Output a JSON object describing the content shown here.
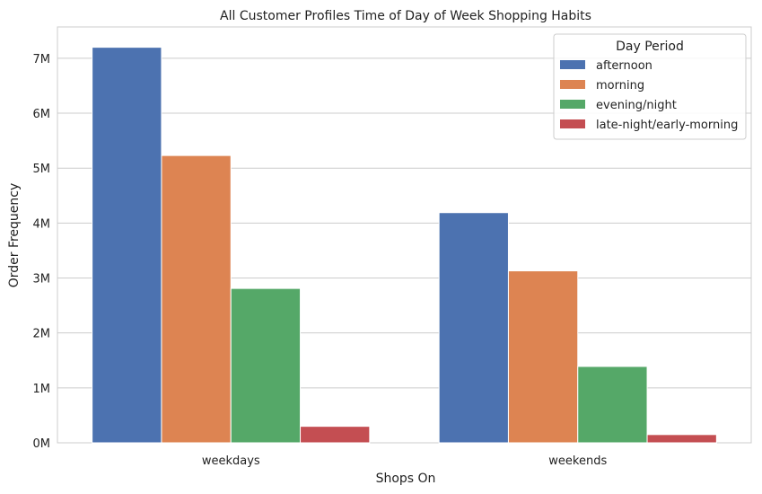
{
  "chart_data": {
    "type": "bar",
    "title": "All Customer Profiles Time of Day of Week Shopping Habits",
    "xlabel": "Shops On",
    "ylabel": "Order Frequency",
    "categories": [
      "weekdays",
      "weekends"
    ],
    "series": [
      {
        "name": "afternoon",
        "color": "#4c72b0",
        "values": [
          7200000,
          4190000
        ]
      },
      {
        "name": "morning",
        "color": "#dd8452",
        "values": [
          5230000,
          3130000
        ]
      },
      {
        "name": "evening/night",
        "color": "#55a868",
        "values": [
          2810000,
          1390000
        ]
      },
      {
        "name": "late-night/early-morning",
        "color": "#c44e52",
        "values": [
          300000,
          150000
        ]
      }
    ],
    "ylim": [
      0,
      7570000
    ],
    "yticks": [
      0,
      1000000,
      2000000,
      3000000,
      4000000,
      5000000,
      6000000,
      7000000
    ],
    "ytick_labels": [
      "0M",
      "1M",
      "2M",
      "3M",
      "4M",
      "5M",
      "6M",
      "7M"
    ],
    "grid": "horizontal",
    "legend": {
      "title": "Day Period",
      "placement": "top-right"
    }
  }
}
